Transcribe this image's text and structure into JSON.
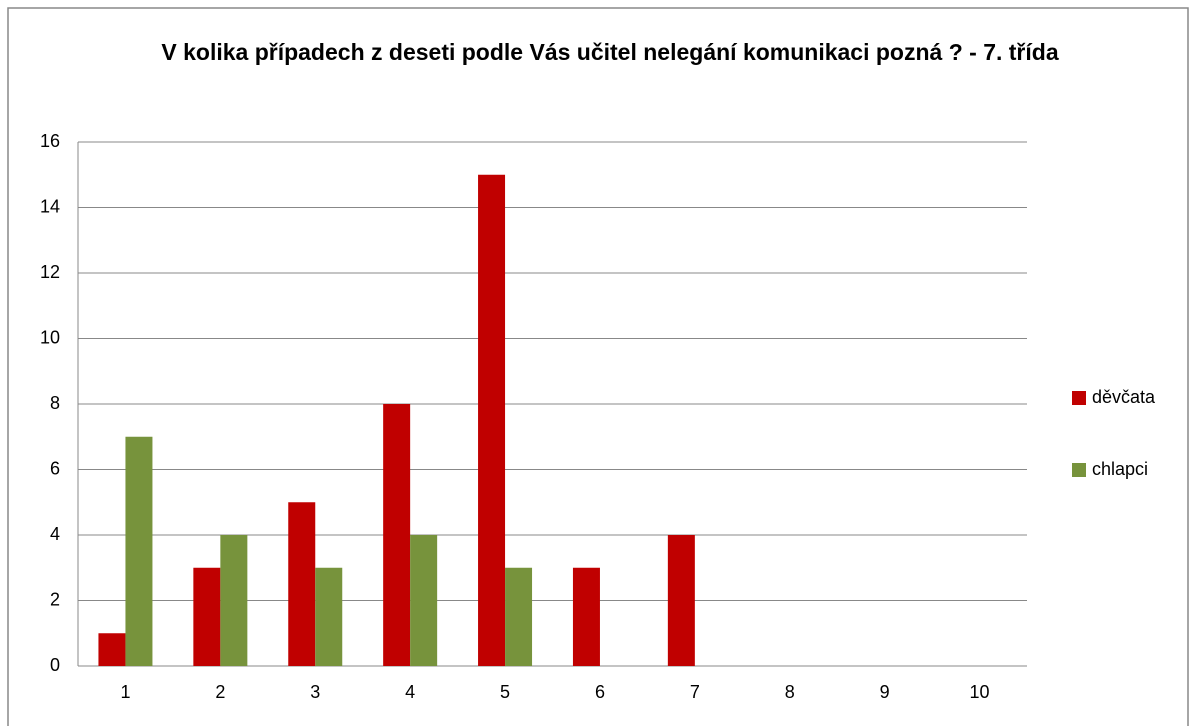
{
  "chart_data": {
    "type": "bar",
    "title": "V kolika případech z deseti podle Vás učitel nelegání komunikaci pozná ? - 7. třída",
    "categories": [
      "1",
      "2",
      "3",
      "4",
      "5",
      "6",
      "7",
      "8",
      "9",
      "10"
    ],
    "series": [
      {
        "name": "děvčata",
        "color": "#c00000",
        "values": [
          1,
          3,
          5,
          8,
          15,
          3,
          4,
          0,
          0,
          0
        ]
      },
      {
        "name": "chlapci",
        "color": "#77933c",
        "values": [
          7,
          4,
          3,
          4,
          3,
          0,
          0,
          0,
          0,
          0
        ]
      }
    ],
    "ylim": [
      0,
      16
    ],
    "yticks": [
      0,
      2,
      4,
      6,
      8,
      10,
      12,
      14,
      16
    ],
    "grid": true,
    "legend": "right"
  }
}
